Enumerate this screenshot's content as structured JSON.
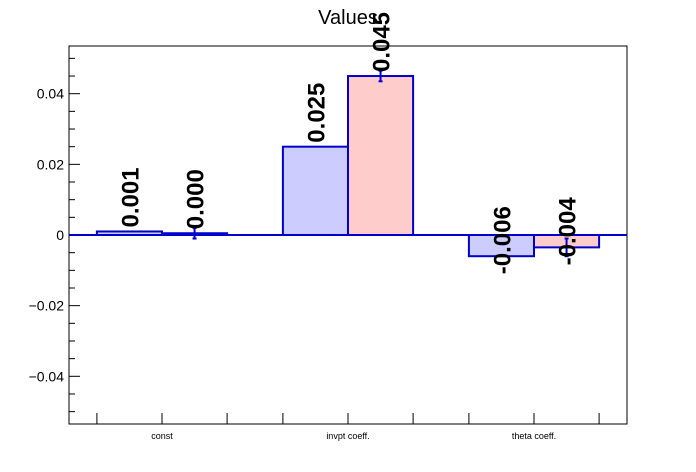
{
  "chart_data": {
    "type": "bar",
    "title": "Values",
    "xlabel": "",
    "ylabel": "",
    "categories": [
      "const",
      "invpt coeff.",
      "theta coeff."
    ],
    "ylim": [
      -0.0535,
      0.0535
    ],
    "yticks": [
      -0.04,
      -0.02,
      0,
      0.02,
      0.04
    ],
    "ytick_labels": [
      "−0.04",
      "−0.02",
      "0",
      "0.02",
      "0.04"
    ],
    "grid": false,
    "series": [
      {
        "values": [
          0.001,
          0.025,
          -0.006
        ],
        "labels": [
          "0.001",
          "0.025",
          "-0.006"
        ],
        "errors": [
          0,
          0,
          0
        ],
        "fill_color": "#ccccff",
        "line_color": "#0000cc"
      },
      {
        "values": [
          0.0005,
          0.045,
          -0.0035
        ],
        "labels": [
          "0.000",
          "0.045",
          "-0.004"
        ],
        "errors": [
          0.0015,
          0.0015,
          0.0025
        ],
        "fill_color": "#ffcccc",
        "line_color": "#0000cc"
      }
    ]
  }
}
